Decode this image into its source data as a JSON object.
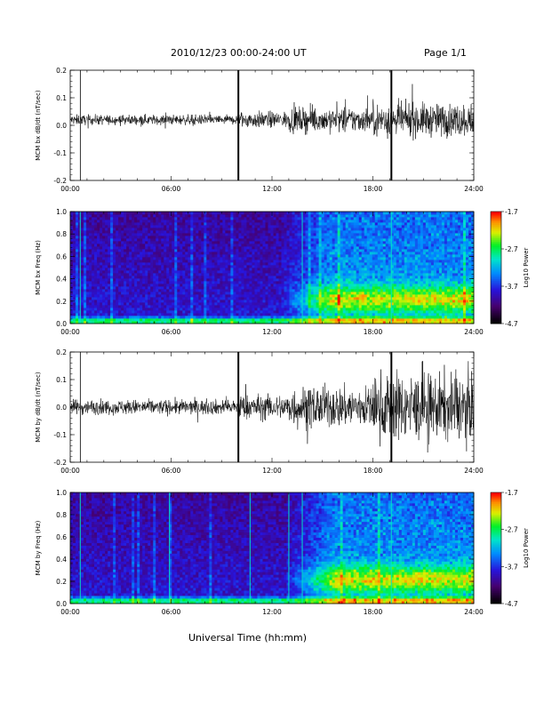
{
  "header": {
    "title": "2010/12/23  00:00-24:00 UT",
    "page": "Page 1/1"
  },
  "footer": {
    "xlabel": "Universal Time (hh:mm)"
  },
  "chart_data": [
    {
      "type": "line",
      "panel": "waveform",
      "ylabel": "MCM bx dB/dt (nT/sec)",
      "xlim": [
        0,
        24
      ],
      "ylim": [
        -0.2,
        0.2
      ],
      "xticks": [
        "00:00",
        "06:00",
        "12:00",
        "18:00",
        "24:00"
      ],
      "yticks": [
        "-0.2",
        "-0.1",
        "0.0",
        "0.1",
        "0.2"
      ],
      "baseline": 0.02,
      "spikes_hours": [
        0.6,
        10.0,
        19.1
      ],
      "series": [
        {
          "segments": [
            {
              "from": 0,
              "to": 10,
              "amp": 0.012
            },
            {
              "from": 10,
              "to": 13,
              "amp": 0.02
            },
            {
              "from": 13,
              "to": 18,
              "amp": 0.03
            },
            {
              "from": 18,
              "to": 24,
              "amp": 0.04
            }
          ]
        }
      ]
    },
    {
      "type": "heatmap",
      "panel": "spectrogram",
      "ylabel": "MCM bx Freq (Hz)",
      "xlim": [
        0,
        24
      ],
      "ylim": [
        0,
        1.0
      ],
      "xticks": [
        "00:00",
        "06:00",
        "12:00",
        "18:00",
        "24:00"
      ],
      "yticks": [
        "0.0",
        "0.2",
        "0.4",
        "0.6",
        "0.8",
        "1.0"
      ],
      "colorbar": {
        "label": "Log10 Power",
        "ticks": [
          "-1.7",
          "-2.7",
          "-3.7",
          "-4.7"
        ],
        "range": [
          -4.7,
          -1.7
        ]
      },
      "lines_hours": [
        0.6,
        13.8,
        19.1
      ],
      "activity_start_hours": 12.5
    },
    {
      "type": "line",
      "panel": "waveform",
      "ylabel": "MCM by dB/dt (nT/sec)",
      "xlim": [
        0,
        24
      ],
      "ylim": [
        -0.2,
        0.2
      ],
      "xticks": [
        "00:00",
        "06:00",
        "12:00",
        "18:00",
        "24:00"
      ],
      "yticks": [
        "-0.2",
        "-0.1",
        "0.0",
        "0.1",
        "0.2"
      ],
      "baseline": 0.0,
      "spikes_hours": [
        0.6,
        10.0,
        19.1
      ],
      "series": [
        {
          "segments": [
            {
              "from": 0,
              "to": 10,
              "amp": 0.018
            },
            {
              "from": 10,
              "to": 13,
              "amp": 0.03
            },
            {
              "from": 13,
              "to": 18,
              "amp": 0.05
            },
            {
              "from": 18,
              "to": 24,
              "amp": 0.08
            }
          ]
        }
      ]
    },
    {
      "type": "heatmap",
      "panel": "spectrogram",
      "ylabel": "MCM by Freq (Hz)",
      "xlim": [
        0,
        24
      ],
      "ylim": [
        0,
        1.0
      ],
      "xticks": [
        "00:00",
        "06:00",
        "12:00",
        "18:00",
        "24:00"
      ],
      "yticks": [
        "0.0",
        "0.2",
        "0.4",
        "0.6",
        "0.8",
        "1.0"
      ],
      "colorbar": {
        "label": "Log10 Power",
        "ticks": [
          "-1.7",
          "-2.7",
          "-3.7",
          "-4.7"
        ],
        "range": [
          -4.7,
          -1.7
        ]
      },
      "lines_hours": [
        0.6,
        5.9,
        10.7,
        13.0,
        13.8,
        19.1
      ],
      "activity_start_hours": 12.8
    }
  ]
}
